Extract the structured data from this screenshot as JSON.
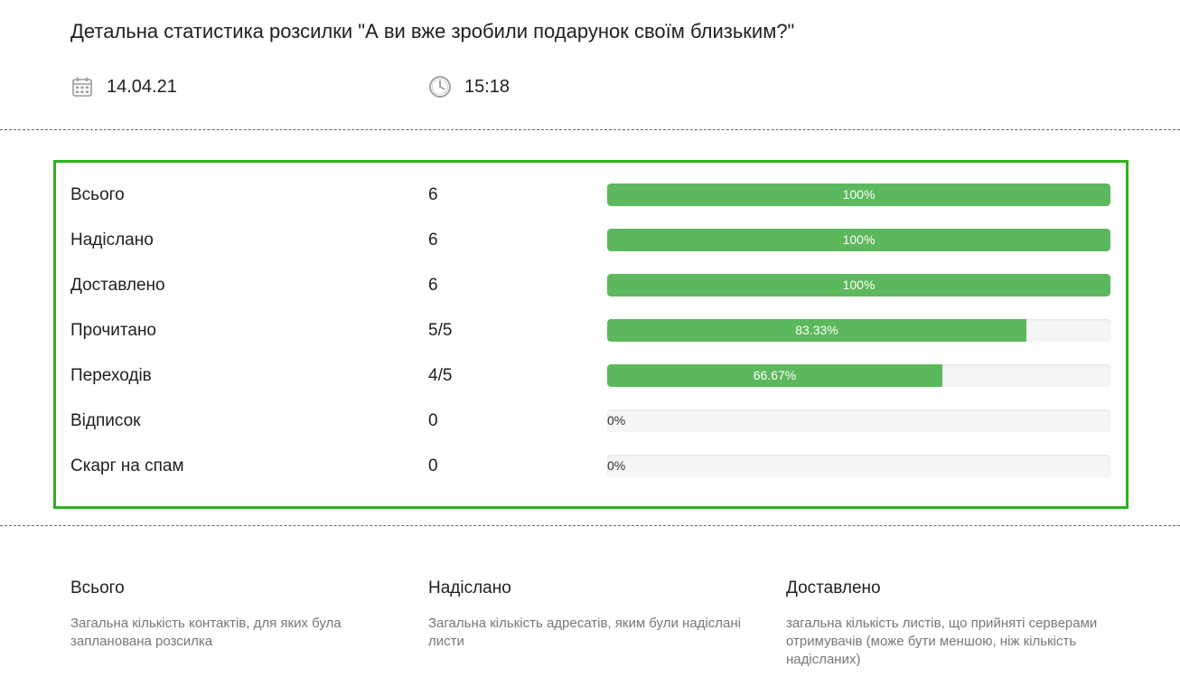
{
  "header": {
    "title": "Детальна статистика розсилки \"А ви вже зробили подарунок своїм близьким?\"",
    "date": "14.04.21",
    "time": "15:18",
    "date_icon": "calendar-icon",
    "time_icon": "clock-icon"
  },
  "colors": {
    "accent_border": "#2db31e",
    "progress_fill": "#5cb85c",
    "progress_track": "#f5f5f5"
  },
  "stats": {
    "rows": [
      {
        "label": "Всього",
        "count": "6",
        "percent": 100,
        "percent_label": "100%"
      },
      {
        "label": "Надіслано",
        "count": "6",
        "percent": 100,
        "percent_label": "100%"
      },
      {
        "label": "Доставлено",
        "count": "6",
        "percent": 100,
        "percent_label": "100%"
      },
      {
        "label": "Прочитано",
        "count": "5/5",
        "percent": 83.33,
        "percent_label": "83.33%"
      },
      {
        "label": "Переходів",
        "count": "4/5",
        "percent": 66.67,
        "percent_label": "66.67%"
      },
      {
        "label": "Відписок",
        "count": "0",
        "percent": 0,
        "percent_label": "0%"
      },
      {
        "label": "Скарг на спам",
        "count": "0",
        "percent": 0,
        "percent_label": "0%"
      }
    ]
  },
  "legend": [
    {
      "title": "Всього",
      "description": "Загальна кількість контактів, для яких була запланована розсилка"
    },
    {
      "title": "Надіслано",
      "description": "Загальна кількість адресатів, яким були надіслані листи"
    },
    {
      "title": "Доставлено",
      "description": "загальна кількість листів, що прийняті серверами отримувачів (може бути меншою, ніж кількість надісланих)"
    }
  ]
}
